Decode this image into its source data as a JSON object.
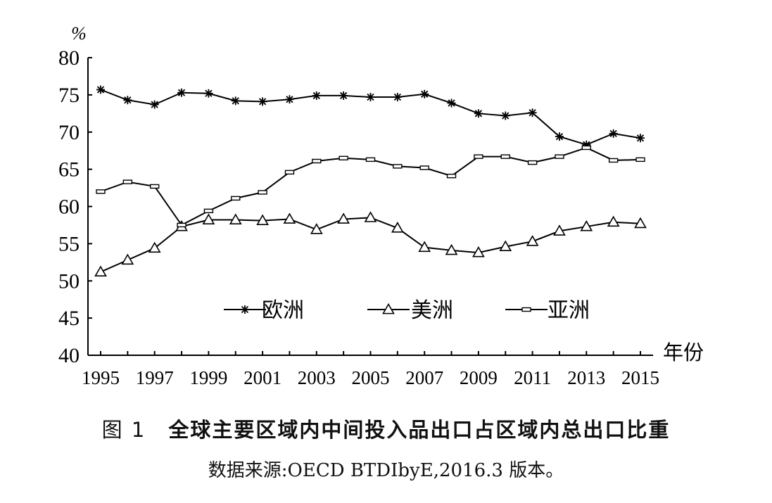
{
  "chart_data": {
    "type": "line",
    "ylabel": "%",
    "xlabel": "年份",
    "ylim": [
      40,
      80
    ],
    "yticks": [
      40,
      45,
      50,
      55,
      60,
      65,
      70,
      75,
      80
    ],
    "xlim": [
      1995,
      2015
    ],
    "xtick_labels": [
      "1995",
      "1997",
      "1999",
      "2001",
      "2003",
      "2005",
      "2007",
      "2009",
      "2011",
      "2013",
      "2015"
    ],
    "grid": false,
    "legend_position": "inside-lower",
    "x": [
      1995,
      1996,
      1997,
      1998,
      1999,
      2000,
      2001,
      2002,
      2003,
      2004,
      2005,
      2006,
      2007,
      2008,
      2009,
      2010,
      2011,
      2012,
      2013,
      2014,
      2015
    ],
    "series": [
      {
        "name": "欧洲",
        "marker": "asterisk",
        "values": [
          75.7,
          74.3,
          73.7,
          75.3,
          75.2,
          74.2,
          74.1,
          74.4,
          74.9,
          74.9,
          74.7,
          74.7,
          75.1,
          73.9,
          72.5,
          72.2,
          72.6,
          69.4,
          68.3,
          69.8,
          69.2
        ]
      },
      {
        "name": "美洲",
        "marker": "triangle",
        "values": [
          51.2,
          52.8,
          54.4,
          57.3,
          58.2,
          58.2,
          58.1,
          58.3,
          56.9,
          58.3,
          58.5,
          57.1,
          54.5,
          54.1,
          53.8,
          54.6,
          55.3,
          56.7,
          57.3,
          57.9,
          57.7
        ]
      },
      {
        "name": "亚洲",
        "marker": "dash",
        "values": [
          62.0,
          63.3,
          62.7,
          57.5,
          59.4,
          61.1,
          61.9,
          64.6,
          66.1,
          66.5,
          66.3,
          65.4,
          65.2,
          64.1,
          66.7,
          66.7,
          65.9,
          66.7,
          67.9,
          66.2,
          66.3
        ]
      }
    ]
  },
  "caption": {
    "figure_number": "图 1",
    "title": "全球主要区域内中间投入品出口占区域内总出口比重"
  },
  "source": "数据来源:OECD BTDIbyE,2016.3 版本。"
}
